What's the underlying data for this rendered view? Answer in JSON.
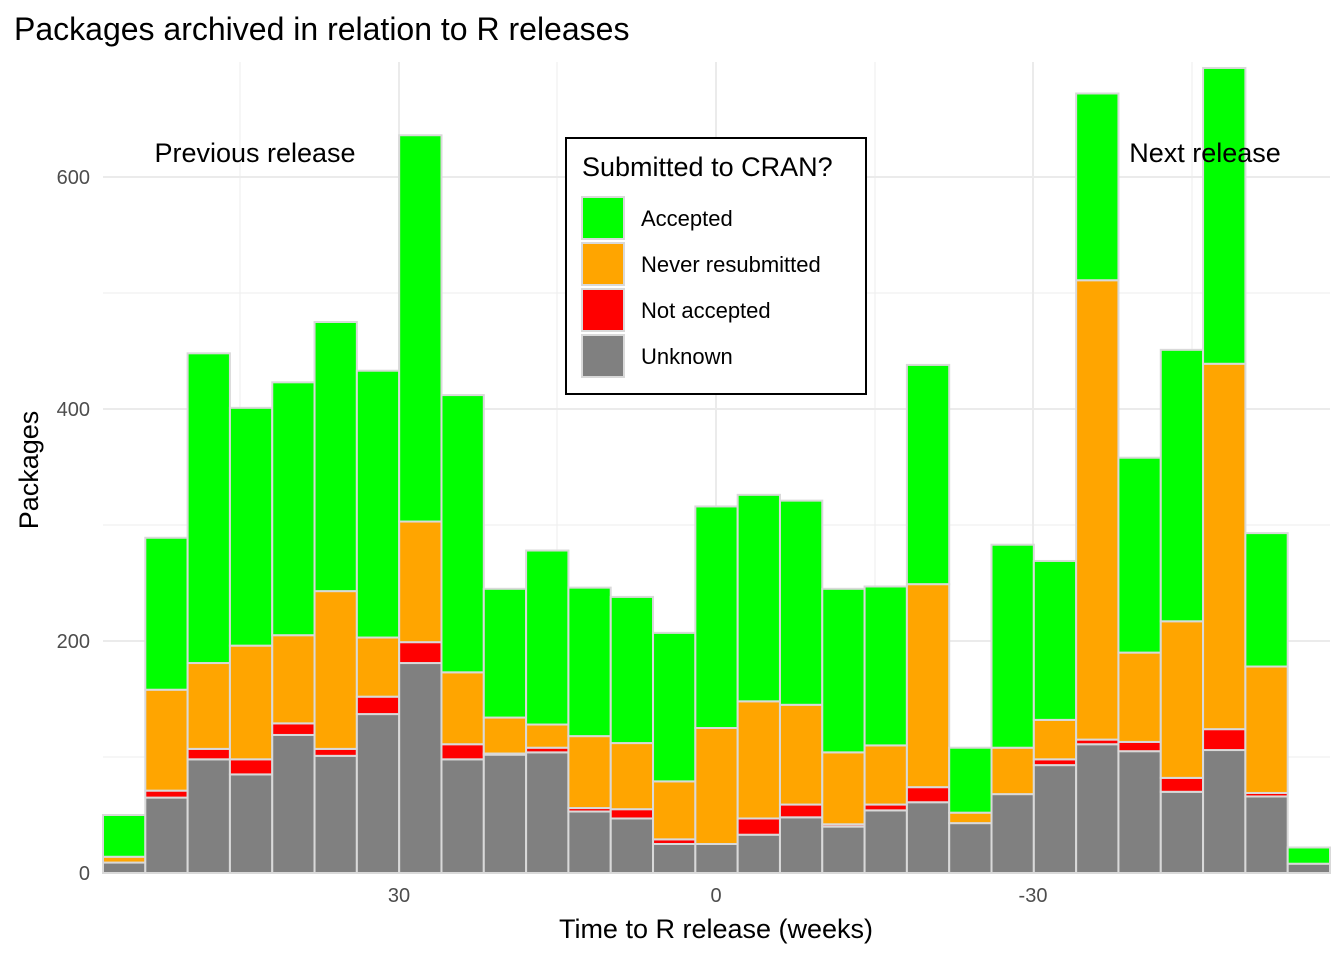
{
  "chart_data": {
    "type": "bar",
    "stacked": true,
    "title": "Packages archived in relation to R releases",
    "xlabel": "Time to R release (weeks)",
    "ylabel": "Packages",
    "ylim": [
      0,
      700
    ],
    "yticks": [
      0,
      200,
      400,
      600
    ],
    "xtick_labels": [
      "30",
      "0",
      "-30"
    ],
    "grid": true,
    "legend": {
      "title": "Submitted to CRAN?",
      "position": "top-center",
      "entries": [
        "Accepted",
        "Never resubmitted",
        "Not accepted",
        "Unknown"
      ]
    },
    "annotations": [
      "Previous release",
      "Next release"
    ],
    "colors": {
      "Accepted": "#00ff00",
      "Never resubmitted": "#ffa500",
      "Not accepted": "#ff0000",
      "Unknown": "#808080",
      "bar_border": "#d9d9d9"
    },
    "series": [
      {
        "name": "Unknown",
        "values": [
          9,
          65,
          98,
          85,
          119,
          101,
          137,
          181,
          98,
          102,
          104,
          53,
          47,
          25,
          25,
          33,
          48,
          40,
          54,
          61,
          43,
          68,
          93,
          111,
          105,
          70,
          106,
          66,
          8
        ]
      },
      {
        "name": "Not accepted",
        "values": [
          0,
          6,
          9,
          13,
          10,
          6,
          15,
          18,
          13,
          1,
          4,
          3,
          8,
          4,
          0,
          14,
          11,
          2,
          5,
          13,
          0,
          0,
          5,
          4,
          8,
          12,
          18,
          3,
          0
        ]
      },
      {
        "name": "Never resubmitted",
        "values": [
          5,
          87,
          74,
          98,
          76,
          136,
          51,
          104,
          62,
          31,
          20,
          62,
          57,
          50,
          100,
          101,
          86,
          62,
          51,
          175,
          9,
          40,
          34,
          396,
          77,
          135,
          315,
          109,
          0
        ]
      },
      {
        "name": "Accepted",
        "values": [
          36,
          131,
          267,
          205,
          218,
          232,
          230,
          333,
          239,
          111,
          150,
          128,
          126,
          128,
          191,
          178,
          176,
          141,
          137,
          189,
          56,
          175,
          137,
          161,
          168,
          234,
          255,
          115,
          14
        ]
      }
    ]
  }
}
